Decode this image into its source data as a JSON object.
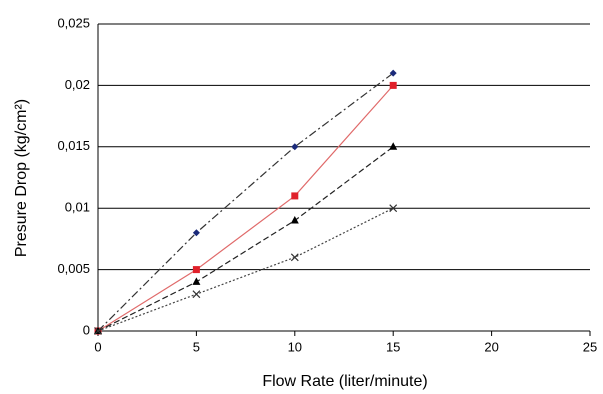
{
  "chart_data": {
    "type": "line",
    "xlabel": "Flow Rate (liter/minute)",
    "ylabel": "Presure Drop (kg/cm²)",
    "x": [
      0,
      5,
      10,
      15
    ],
    "series": [
      {
        "color": "#1b2a7a",
        "line_color": "#333333",
        "dash": "8 3 2 3",
        "marker": "diamond",
        "values": [
          0,
          0.008,
          0.015,
          0.021
        ]
      },
      {
        "color": "#e0202a",
        "line_color": "#e06a6a",
        "dash": "none",
        "marker": "square",
        "values": [
          0,
          0.005,
          0.011,
          0.02
        ]
      },
      {
        "color": "#000000",
        "line_color": "#222222",
        "dash": "6 3",
        "marker": "triangle",
        "values": [
          0,
          0.004,
          0.009,
          0.015
        ]
      },
      {
        "color": "#333333",
        "line_color": "#444444",
        "dash": "2 2",
        "marker": "cross",
        "values": [
          0,
          0.003,
          0.006,
          0.01
        ]
      }
    ],
    "xlim": [
      0,
      25
    ],
    "xticks": [
      0,
      5,
      10,
      15,
      20,
      25
    ],
    "ylim": [
      0,
      0.025
    ],
    "yticks": [
      0,
      {
        "value": 0.005,
        "label": "0,005"
      },
      {
        "value": 0.01,
        "label": "0,01"
      },
      {
        "value": 0.015,
        "label": "0,015"
      },
      {
        "value": 0.02,
        "label": "0,02"
      },
      {
        "value": 0.025,
        "label": "0,025"
      }
    ],
    "grid": true
  }
}
